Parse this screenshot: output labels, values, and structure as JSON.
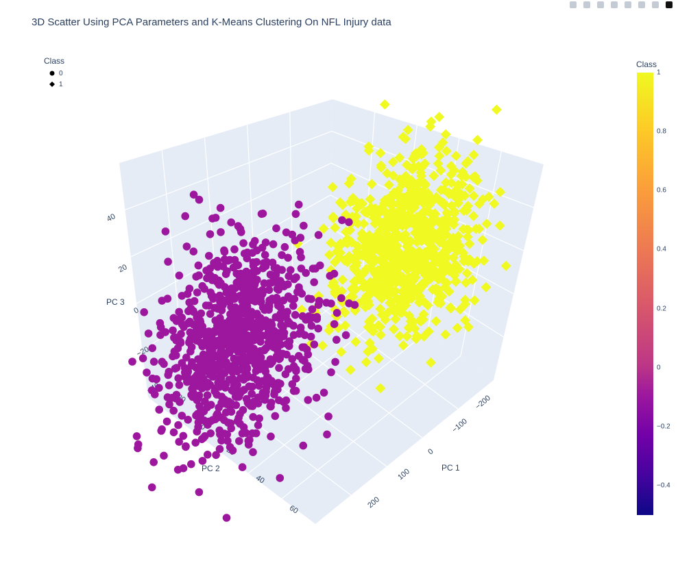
{
  "title": "3D Scatter Using PCA Parameters and K-Means Clustering On NFL Injury data",
  "modebar_icons": [
    "camera-icon",
    "zoom-icon",
    "pan-icon",
    "orbit-icon",
    "turntable-icon",
    "reset-icon",
    "camera-view-icon",
    "plotly-logo"
  ],
  "legend": {
    "title": "Class",
    "items": [
      {
        "label": "0",
        "symbol": "circle"
      },
      {
        "label": "1",
        "symbol": "diamond"
      }
    ]
  },
  "colorbar": {
    "title": "Class",
    "ticks": [
      "1",
      "0.8",
      "0.6",
      "0.4",
      "0.2",
      "0",
      "−0.2",
      "−0.4"
    ]
  },
  "colors": {
    "class0": "#9c179e",
    "class1": "#f0f921",
    "axis_text": "#2a3f5f",
    "scene_bg": "#e5ecf6"
  },
  "chart_data": {
    "type": "scatter",
    "dimensions": "3d",
    "title": "3D Scatter Using PCA Parameters and K-Means Clustering On NFL Injury data",
    "axes": {
      "x": {
        "label": "PC 1",
        "ticks": [
          "−200",
          "−100",
          "0",
          "100",
          "200"
        ],
        "range": [
          -250,
          250
        ]
      },
      "y": {
        "label": "PC 2",
        "ticks": [
          "−20",
          "0",
          "20",
          "40",
          "60"
        ],
        "range": [
          -30,
          70
        ]
      },
      "z": {
        "label": "PC 3",
        "ticks": [
          "−40",
          "−20",
          "0",
          "20",
          "40"
        ],
        "range": [
          -45,
          55
        ]
      }
    },
    "color_scale": {
      "name": "plasma",
      "min": -0.5,
      "max": 1
    },
    "series": [
      {
        "name": "0",
        "symbol": "circle",
        "color_value": 0,
        "points": 900,
        "center": [
          190,
          10,
          0
        ],
        "spread": [
          55,
          13,
          18
        ]
      },
      {
        "name": "1",
        "symbol": "diamond",
        "color_value": 1,
        "points": 800,
        "center": [
          -90,
          5,
          15
        ],
        "spread": [
          55,
          12,
          16
        ]
      }
    ],
    "grid": true,
    "legend_position": "top-left"
  }
}
